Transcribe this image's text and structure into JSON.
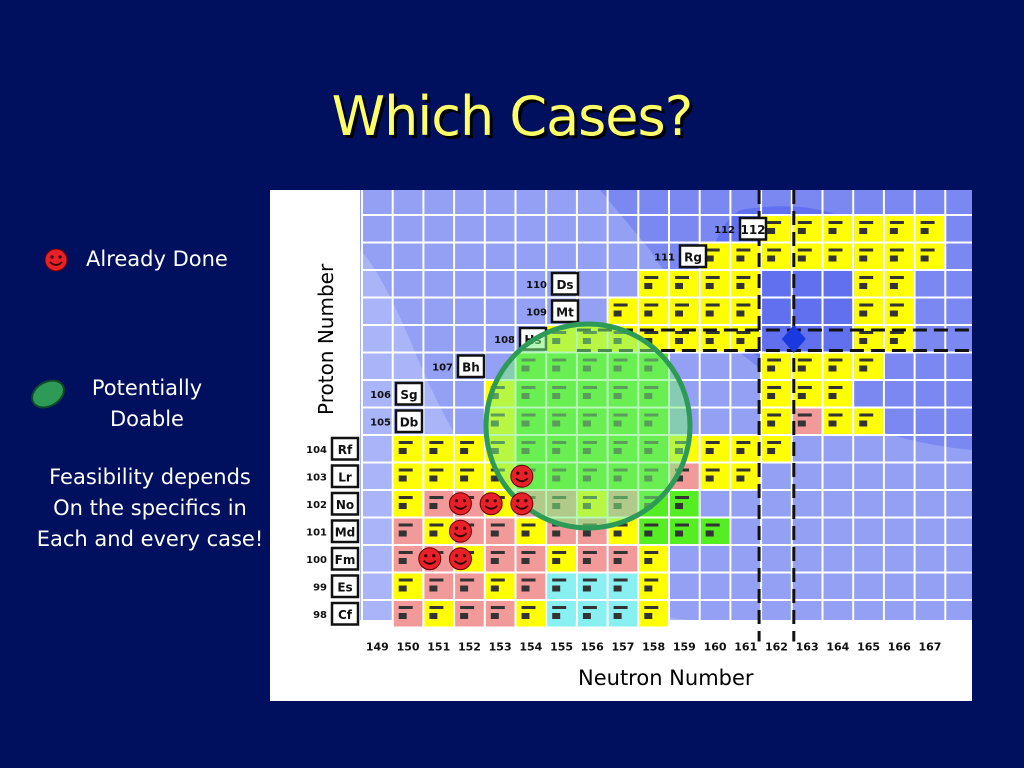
{
  "slide": {
    "title": "Which Cases?",
    "legend": {
      "already_done": "Already Done",
      "potentially_doable_line1": "Potentially",
      "potentially_doable_line2": "Doable",
      "feasibility_line1": "Feasibility depends",
      "feasibility_line2": "On the specifics in",
      "feasibility_line3": "Each and every case!"
    }
  },
  "chart": {
    "ylabel": "Proton Number",
    "xlabel": "Neutron Number",
    "proton_ticks": [
      "98",
      "99",
      "100",
      "101",
      "102",
      "103",
      "104",
      "105",
      "106",
      "107",
      "108",
      "109",
      "110",
      "111",
      "112"
    ],
    "element_labels": [
      "Cf",
      "Es",
      "Fm",
      "Md",
      "No",
      "Lr",
      "Rf",
      "Db",
      "Sg",
      "Bh",
      "Hs",
      "Mt",
      "Ds",
      "Rg",
      "112"
    ],
    "neutron_ticks": [
      "149",
      "150",
      "151",
      "152",
      "153",
      "154",
      "155",
      "156",
      "157",
      "158",
      "159",
      "160",
      "161",
      "162",
      "163",
      "164",
      "165",
      "166",
      "167"
    ],
    "colors": {
      "background": "#00105e",
      "title": "#ffff66",
      "yellow_cell": "#ffff00",
      "green_cell": "#55ee22",
      "pink_cell": "#f29a9a",
      "cyan_cell": "#88f0f0",
      "blue_cell": "#7b88f2",
      "highlight_circle": "#7cf07c"
    },
    "smiley_positions": [
      {
        "n": 151,
        "z": 100
      },
      {
        "n": 152,
        "z": 100
      },
      {
        "n": 152,
        "z": 101
      },
      {
        "n": 152,
        "z": 102
      },
      {
        "n": 153,
        "z": 102
      },
      {
        "n": 154,
        "z": 102
      },
      {
        "n": 154,
        "z": 103
      }
    ]
  }
}
